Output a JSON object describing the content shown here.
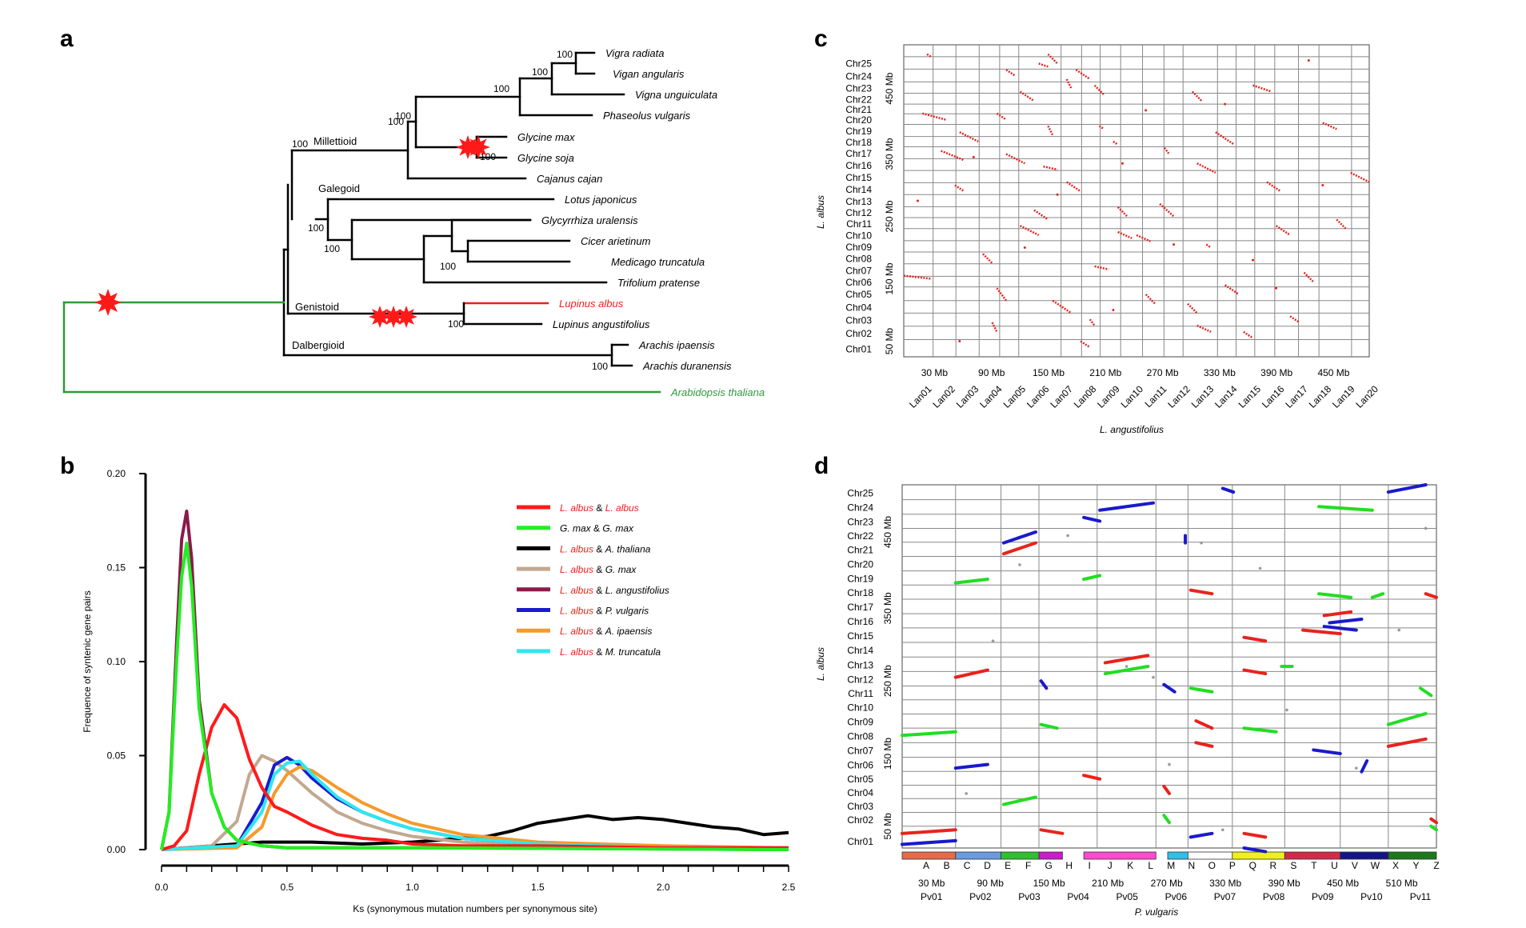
{
  "panels": {
    "a": "a",
    "b": "b",
    "c": "c",
    "d": "d"
  },
  "tree": {
    "species": [
      "Vigra radiata",
      "Vigan angularis",
      "Vigna unguiculata",
      "Phaseolus vulgaris",
      "Glycine max",
      "Glycine soja",
      "Cajanus cajan",
      "Lotus japonicus",
      "Glycyrrhiza uralensis",
      "Cicer arietinum",
      "Medicago truncatula",
      "Trifolium pratense",
      "Lupinus albus",
      "Lupinus angustifolius",
      "Arachis ipaensis",
      "Arachis duranensis",
      "Arabidopsis thaliana"
    ],
    "clades": [
      "Millettioid",
      "Galegoid",
      "Genistoid",
      "Dalbergioid"
    ],
    "bootstrap": "100",
    "colors": {
      "highlight": "#e8231c",
      "outgroup": "#2e9a3a",
      "star": "#ff1a1a"
    }
  },
  "chart_data": [
    {
      "type": "line",
      "panel": "b",
      "ylabel": "Frequence of syntenic gene pairs",
      "xlabel": "Ks (synonymous mutation numbers per synonymous site)",
      "xlim": [
        0.0,
        2.5
      ],
      "ylim": [
        0.0,
        0.2
      ],
      "x_ticks": [
        "0.0",
        "0.5",
        "1.0",
        "1.5",
        "2.0",
        "2.5"
      ],
      "y_ticks": [
        "0.00",
        "0.05",
        "0.10",
        "0.15",
        "0.20"
      ],
      "legend_position": "top-right",
      "series": [
        {
          "name_parts": [
            "L. albus",
            " & ",
            "L. albus"
          ],
          "color": "#ff1a1a",
          "x": [
            0,
            0.05,
            0.1,
            0.15,
            0.2,
            0.25,
            0.3,
            0.35,
            0.4,
            0.45,
            0.5,
            0.6,
            0.7,
            0.8,
            0.9,
            1.0,
            1.2,
            1.5,
            2.0,
            2.5
          ],
          "y": [
            0,
            0.002,
            0.01,
            0.04,
            0.065,
            0.077,
            0.07,
            0.048,
            0.033,
            0.023,
            0.02,
            0.013,
            0.008,
            0.006,
            0.005,
            0.003,
            0.002,
            0.002,
            0.001,
            0.001
          ]
        },
        {
          "name_parts": [
            "G. max",
            " & ",
            "G. max"
          ],
          "color": "#22ee22",
          "x": [
            0,
            0.03,
            0.06,
            0.08,
            0.1,
            0.12,
            0.15,
            0.2,
            0.25,
            0.3,
            0.4,
            0.5,
            1.0,
            2.5
          ],
          "y": [
            0,
            0.02,
            0.1,
            0.145,
            0.163,
            0.14,
            0.075,
            0.03,
            0.012,
            0.005,
            0.002,
            0.001,
            0.001,
            0.0
          ]
        },
        {
          "name_parts": [
            "L. albus",
            " & ",
            "A. thaliana"
          ],
          "color": "#000000",
          "x": [
            0,
            0.2,
            0.4,
            0.6,
            0.8,
            1.0,
            1.2,
            1.3,
            1.4,
            1.5,
            1.6,
            1.7,
            1.8,
            1.9,
            2.0,
            2.1,
            2.2,
            2.3,
            2.4,
            2.5
          ],
          "y": [
            0,
            0.002,
            0.004,
            0.004,
            0.003,
            0.004,
            0.006,
            0.007,
            0.01,
            0.014,
            0.016,
            0.018,
            0.016,
            0.017,
            0.016,
            0.014,
            0.012,
            0.011,
            0.008,
            0.009
          ]
        },
        {
          "name_parts": [
            "L. albus",
            "  & ",
            "G. max"
          ],
          "color": "#c2a890",
          "x": [
            0,
            0.2,
            0.3,
            0.35,
            0.4,
            0.45,
            0.5,
            0.6,
            0.7,
            0.8,
            0.9,
            1.0,
            1.2,
            1.5,
            2.0,
            2.5
          ],
          "y": [
            0,
            0.002,
            0.015,
            0.04,
            0.05,
            0.047,
            0.042,
            0.03,
            0.02,
            0.014,
            0.01,
            0.007,
            0.004,
            0.002,
            0.001,
            0.001
          ]
        },
        {
          "name_parts": [
            "L. albus",
            " & ",
            "L. angustifolius"
          ],
          "color": "#8b1a4a",
          "x": [
            0,
            0.03,
            0.06,
            0.08,
            0.1,
            0.12,
            0.15,
            0.2,
            0.25,
            0.3,
            0.4,
            0.5,
            1.0,
            2.5
          ],
          "y": [
            0,
            0.02,
            0.11,
            0.165,
            0.18,
            0.155,
            0.08,
            0.03,
            0.012,
            0.005,
            0.002,
            0.001,
            0.001,
            0.0
          ]
        },
        {
          "name_parts": [
            "L. albus",
            "  & ",
            "P. vulgaris"
          ],
          "color": "#1a1acc",
          "x": [
            0,
            0.3,
            0.4,
            0.45,
            0.5,
            0.55,
            0.6,
            0.7,
            0.8,
            0.9,
            1.0,
            1.2,
            1.5,
            2.0,
            2.5
          ],
          "y": [
            0,
            0.002,
            0.025,
            0.045,
            0.049,
            0.045,
            0.038,
            0.027,
            0.02,
            0.015,
            0.011,
            0.006,
            0.003,
            0.001,
            0.001
          ]
        },
        {
          "name_parts": [
            "L. albus",
            "  & ",
            "A. ipaensis"
          ],
          "color": "#f59a2a",
          "x": [
            0,
            0.3,
            0.4,
            0.45,
            0.5,
            0.55,
            0.6,
            0.7,
            0.8,
            0.9,
            1.0,
            1.2,
            1.5,
            2.0,
            2.5
          ],
          "y": [
            0,
            0.001,
            0.012,
            0.03,
            0.04,
            0.044,
            0.042,
            0.033,
            0.025,
            0.019,
            0.014,
            0.008,
            0.004,
            0.002,
            0.001
          ]
        },
        {
          "name_parts": [
            "L. albus",
            "  & ",
            "M. truncatula"
          ],
          "color": "#2ee8ee",
          "x": [
            0,
            0.3,
            0.4,
            0.45,
            0.5,
            0.55,
            0.6,
            0.7,
            0.8,
            0.9,
            1.0,
            1.2,
            1.5,
            2.0,
            2.5
          ],
          "y": [
            0,
            0.002,
            0.02,
            0.04,
            0.046,
            0.047,
            0.04,
            0.028,
            0.02,
            0.015,
            0.011,
            0.006,
            0.003,
            0.001,
            0.001
          ]
        }
      ]
    },
    {
      "type": "scatter",
      "panel": "c",
      "ylabel": "L. albus",
      "xlabel": "L. angustifolius",
      "y_chromosomes": [
        "Chr01",
        "Chr02",
        "Chr03",
        "Chr04",
        "Chr05",
        "Chr06",
        "Chr07",
        "Chr08",
        "Chr09",
        "Chr10",
        "Chr11",
        "Chr12",
        "Chr13",
        "Chr14",
        "Chr15",
        "Chr16",
        "Chr17",
        "Chr18",
        "Chr19",
        "Chr20",
        "Chr21",
        "Chr22",
        "Chr23",
        "Chr24",
        "Chr25"
      ],
      "x_chromosomes": [
        "Lan01",
        "Lan02",
        "Lan03",
        "Lan04",
        "Lan05",
        "Lan06",
        "Lan07",
        "Lan08",
        "Lan09",
        "Lan10",
        "Lan11",
        "Lan12",
        "Lan13",
        "Lan14",
        "Lan15",
        "Lan16",
        "Lan17",
        "Lan18",
        "Lan19",
        "Lan20"
      ],
      "x_ticks": [
        "30 Mb",
        "90 Mb",
        "150 Mb",
        "210 Mb",
        "270 Mb",
        "330 Mb",
        "390 Mb",
        "450 Mb"
      ],
      "y_ticks": [
        "50 Mb",
        "150 Mb",
        "250 Mb",
        "350 Mb",
        "450 Mb"
      ],
      "dot_color": "#e8231c"
    },
    {
      "type": "scatter",
      "panel": "d",
      "ylabel": "L. albus",
      "xlabel": "P. vulgaris",
      "y_chromosomes": [
        "Chr01",
        "Chr02",
        "Chr03",
        "Chr04",
        "Chr05",
        "Chr06",
        "Chr07",
        "Chr08",
        "Chr09",
        "Chr10",
        "Chr11",
        "Chr12",
        "Chr13",
        "Chr14",
        "Chr15",
        "Chr16",
        "Chr17",
        "Chr18",
        "Chr19",
        "Chr20",
        "Chr21",
        "Chr22",
        "Chr23",
        "Chr24",
        "Chr25"
      ],
      "x_chromosomes": [
        "Pv01",
        "Pv02",
        "Pv03",
        "Pv04",
        "Pv05",
        "Pv06",
        "Pv07",
        "Pv08",
        "Pv09",
        "Pv10",
        "Pv11"
      ],
      "block_letters": [
        "A",
        "B",
        "C",
        "D",
        "E",
        "F",
        "G",
        "H",
        "I",
        "J",
        "K",
        "L",
        "M",
        "N",
        "O",
        "P",
        "Q",
        "R",
        "S",
        "T",
        "U",
        "V",
        "W",
        "X",
        "Y",
        "Z"
      ],
      "x_ticks": [
        "30 Mb",
        "90 Mb",
        "150 Mb",
        "210 Mb",
        "270 Mb",
        "330 Mb",
        "390 Mb",
        "450 Mb",
        "510 Mb"
      ],
      "y_ticks": [
        "50 Mb",
        "150 Mb",
        "250 Mb",
        "350 Mb",
        "450 Mb"
      ],
      "segment_colors": {
        "red": "#e8231c",
        "green": "#22dd22",
        "blue": "#1a1acc",
        "grey": "#999999"
      }
    }
  ]
}
